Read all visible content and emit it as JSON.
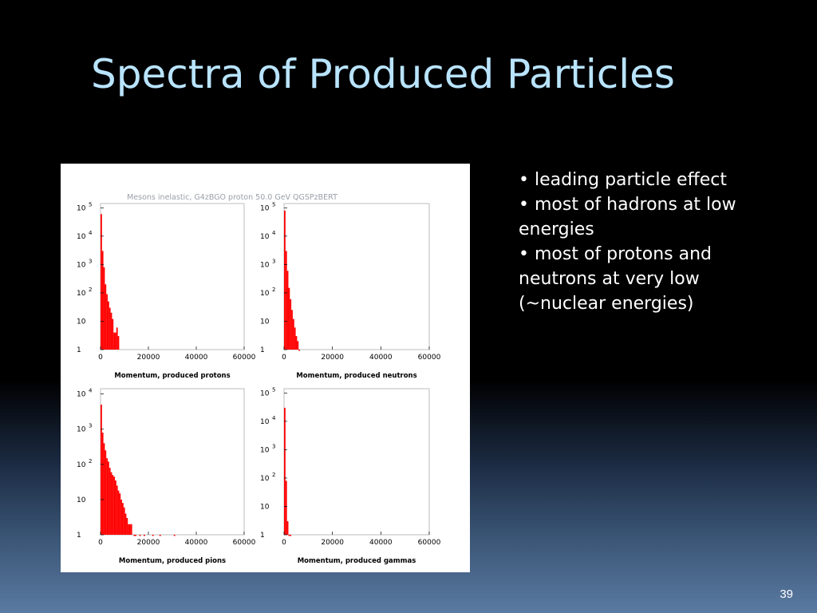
{
  "slide": {
    "title": "Spectra of Produced Particles",
    "page_number": "39",
    "bullets": [
      "• leading particle effect",
      "• most of hadrons at low energies",
      "• most of protons and neutrons at very low (~nuclear energies)"
    ]
  },
  "colors": {
    "background_top": "#000000",
    "background_bottom": "#5a7aa2",
    "title": "#b9e4ff",
    "bars": "#ff0000"
  },
  "figure_title": "Mesons inelastic, G4zBGO proton 50.0 GeV QGSPzBERT",
  "chart_data": [
    {
      "type": "bar",
      "scale": "log",
      "xlabel": "Momentum, produced protons",
      "xlim": [
        0,
        60000
      ],
      "ylim": [
        1,
        100000
      ],
      "xticks": [
        "0",
        "20000",
        "40000",
        "60000"
      ],
      "yticks": [
        {
          "base": "10",
          "exp": "5",
          "value": 100000
        },
        {
          "base": "10",
          "exp": "4",
          "value": 10000
        },
        {
          "base": "10",
          "exp": "3",
          "value": 1000
        },
        {
          "base": "10",
          "exp": "2",
          "value": 100
        },
        {
          "base": "10",
          "exp": "",
          "value": 10
        },
        {
          "base": "1",
          "exp": "",
          "value": 1
        }
      ],
      "bin_width": 600,
      "bins": [
        0,
        600,
        1200,
        1800,
        2400,
        3000,
        3600,
        4200,
        4800,
        5400,
        6000,
        6600,
        7200
      ],
      "values": [
        60000,
        3000,
        800,
        200,
        90,
        50,
        30,
        20,
        12,
        4,
        4,
        6,
        3
      ]
    },
    {
      "type": "bar",
      "scale": "log",
      "xlabel": "Momentum, produced neutrons",
      "xlim": [
        0,
        60000
      ],
      "ylim": [
        1,
        100000
      ],
      "xticks": [
        "0",
        "20000",
        "40000",
        "60000"
      ],
      "yticks": [
        {
          "base": "10",
          "exp": "5",
          "value": 100000
        },
        {
          "base": "10",
          "exp": "4",
          "value": 10000
        },
        {
          "base": "10",
          "exp": "3",
          "value": 1000
        },
        {
          "base": "10",
          "exp": "2",
          "value": 100
        },
        {
          "base": "10",
          "exp": "",
          "value": 10
        },
        {
          "base": "1",
          "exp": "",
          "value": 1
        }
      ],
      "bin_width": 600,
      "bins": [
        0,
        600,
        1200,
        1800,
        2400,
        3000,
        3600,
        4200,
        4800,
        5400,
        6000
      ],
      "values": [
        80000,
        3000,
        600,
        150,
        60,
        25,
        12,
        6,
        3,
        2,
        1
      ]
    },
    {
      "type": "bar",
      "scale": "log",
      "xlabel": "Momentum, produced pions",
      "xlim": [
        0,
        60000
      ],
      "ylim": [
        1,
        10000
      ],
      "xticks": [
        "0",
        "20000",
        "40000",
        "60000"
      ],
      "yticks": [
        {
          "base": "10",
          "exp": "4",
          "value": 10000
        },
        {
          "base": "10",
          "exp": "3",
          "value": 1000
        },
        {
          "base": "10",
          "exp": "2",
          "value": 100
        },
        {
          "base": "10",
          "exp": "",
          "value": 10
        },
        {
          "base": "1",
          "exp": "",
          "value": 1
        }
      ],
      "bin_width": 600,
      "bins": [
        0,
        600,
        1200,
        1800,
        2400,
        3000,
        3600,
        4200,
        4800,
        5400,
        6000,
        6600,
        7200,
        7800,
        8400,
        9000,
        9600,
        10200,
        10800,
        11400,
        12000,
        12600,
        13800,
        14400,
        16200,
        18000,
        21600,
        24600,
        30600
      ],
      "values": [
        5000,
        800,
        400,
        250,
        150,
        120,
        80,
        60,
        50,
        45,
        35,
        25,
        18,
        15,
        10,
        8,
        6,
        4,
        3,
        2,
        2,
        2,
        1,
        1,
        1,
        1,
        1,
        1,
        1
      ]
    },
    {
      "type": "bar",
      "scale": "log",
      "xlabel": "Momentum, produced gammas",
      "xlim": [
        0,
        60000
      ],
      "ylim": [
        1,
        100000
      ],
      "xticks": [
        "0",
        "20000",
        "40000",
        "60000"
      ],
      "yticks": [
        {
          "base": "10",
          "exp": "5",
          "value": 100000
        },
        {
          "base": "10",
          "exp": "4",
          "value": 10000
        },
        {
          "base": "10",
          "exp": "3",
          "value": 1000
        },
        {
          "base": "10",
          "exp": "2",
          "value": 100
        },
        {
          "base": "10",
          "exp": "",
          "value": 10
        },
        {
          "base": "1",
          "exp": "",
          "value": 1
        }
      ],
      "bin_width": 600,
      "bins": [
        0,
        600,
        1200,
        1800,
        2400
      ],
      "values": [
        30000,
        80,
        3,
        1,
        1
      ]
    }
  ]
}
